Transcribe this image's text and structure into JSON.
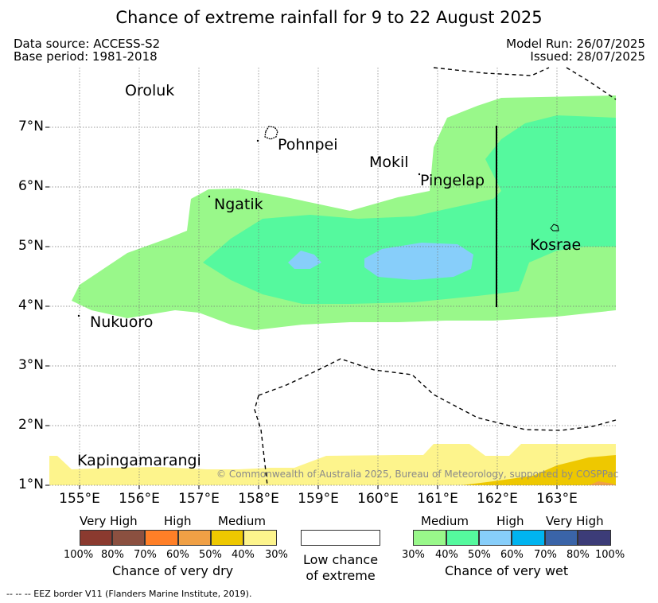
{
  "title": "Chance of extreme rainfall for 9 to 22 August 2025",
  "data_source": "Data source: ACCESS-S2",
  "base_period": "Base period: 1981-2018",
  "model_run": "Model Run: 26/07/2025",
  "issued": "Issued: 28/07/2025",
  "copyright": "© Commonwealth of Australia 2025, Bureau of Meteorology, supported by COSPPac",
  "footnote": "--  --  -- EEZ border V11 (Flanders Marine Institute, 2019).",
  "places": {
    "oroluk": "Oroluk",
    "pohnpei": "Pohnpei",
    "mokil": "Mokil",
    "pingelap": "Pingelap",
    "ngatik": "Ngatik",
    "kosrae": "Kosrae",
    "nukuoro": "Nukuoro",
    "kapingamarangi": "Kapingamarangi"
  },
  "axes": {
    "lat_labels": [
      "7°N",
      "6°N",
      "5°N",
      "4°N",
      "3°N",
      "2°N",
      "1°N"
    ],
    "lon_labels": [
      "155°E",
      "156°E",
      "157°E",
      "158°E",
      "159°E",
      "160°E",
      "161°E",
      "162°E",
      "163°E"
    ]
  },
  "legend": {
    "dry": {
      "categories": [
        "Very High",
        "High",
        "Medium"
      ],
      "percents": [
        "100%",
        "80%",
        "70%",
        "60%",
        "50%",
        "40%",
        "30%"
      ],
      "title": "Chance of very dry",
      "colors": [
        "#8b3a2f",
        "#8b5040",
        "#ff7f27",
        "#f0a045",
        "#eec800",
        "#fdf48c"
      ]
    },
    "neutral": {
      "line1": "Low chance",
      "line2": "of extreme",
      "color": "#ffffff"
    },
    "wet": {
      "categories": [
        "Medium",
        "High",
        "Very High"
      ],
      "percents": [
        "30%",
        "40%",
        "50%",
        "60%",
        "70%",
        "80%",
        "100%"
      ],
      "title": "Chance of very wet",
      "colors": [
        "#99f88a",
        "#55f99e",
        "#87cefa",
        "#00b4f0",
        "#3a64a8",
        "#3c3c78"
      ]
    }
  }
}
